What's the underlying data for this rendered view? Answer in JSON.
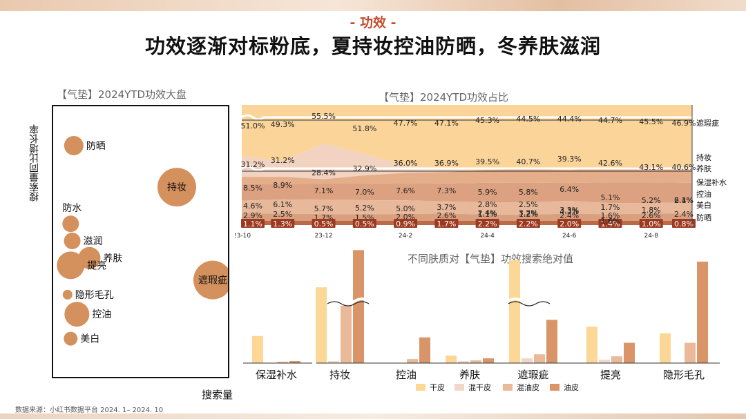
{
  "header": {
    "tag": "- 功效 -",
    "title": "功效逐渐对标粉底，夏持妆控油防晒，冬养肤滋润"
  },
  "source": "数据来源：小红书数据平台 2024. 1– 2024. 10",
  "colors": {
    "bubble": "#d4915e",
    "area_top": "#fbd49a",
    "area_mid": "#f2d3c1",
    "area_band": "#e4ae8b",
    "area_low": "#dca181",
    "area_base": "#ba6a47",
    "gan": "#fcd796",
    "hungan": "#f1d7ca",
    "hunyou": "#e9b99a",
    "you": "#d99568",
    "badge": "#9b3a20"
  },
  "chart_data": [
    {
      "type": "scatter",
      "title": "【气垫】2024YTD功效大盘",
      "xlabel": "搜索量",
      "ylabel": "搜索量同比增长率",
      "points": [
        {
          "label": "防晒",
          "x": 0.07,
          "y": 0.89,
          "size": 14
        },
        {
          "label": "持妆",
          "x": 0.73,
          "y": 0.72,
          "size": 28
        },
        {
          "label": "防水",
          "x": 0.05,
          "y": 0.57,
          "size": 12
        },
        {
          "label": "滋润",
          "x": 0.06,
          "y": 0.5,
          "size": 12
        },
        {
          "label": "养肤",
          "x": 0.17,
          "y": 0.43,
          "size": 16
        },
        {
          "label": "提亮",
          "x": 0.05,
          "y": 0.4,
          "size": 20
        },
        {
          "label": "遮瑕疵",
          "x": 0.96,
          "y": 0.34,
          "size": 28
        },
        {
          "label": "隐形毛孔",
          "x": 0.03,
          "y": 0.28,
          "size": 7
        },
        {
          "label": "控油",
          "x": 0.09,
          "y": 0.2,
          "size": 18
        },
        {
          "label": "美白",
          "x": 0.05,
          "y": 0.1,
          "size": 10
        }
      ]
    },
    {
      "type": "area",
      "stacked": true,
      "title": "【气垫】2024YTD功效占比",
      "x_ticks": [
        "23-10",
        "23-12",
        "24-2",
        "24-4",
        "24-6",
        "24-8"
      ],
      "series": [
        {
          "name": "遮瑕疵",
          "values": [
            51.0,
            49.3,
            55.5,
            51.8,
            47.7,
            47.1,
            45.3,
            44.5,
            44.4,
            44.7,
            45.5,
            46.9
          ]
        },
        {
          "name": "持妆",
          "values": [
            31.2,
            31.2,
            28.4,
            32.9,
            36.0,
            36.9,
            39.5,
            40.7,
            39.3,
            42.6,
            43.1,
            40.6
          ]
        },
        {
          "name": "养肤",
          "values": [
            null,
            null,
            null,
            null,
            null,
            null,
            null,
            null,
            null,
            null,
            null,
            null
          ]
        },
        {
          "name": "保湿补水",
          "values": [
            8.5,
            8.9,
            7.1,
            7.0,
            7.6,
            7.3,
            5.9,
            5.8,
            6.4,
            5.1,
            5.2,
            6.1
          ]
        },
        {
          "name": "控油",
          "values": [
            4.6,
            6.1,
            5.7,
            5.2,
            5.0,
            3.7,
            2.8,
            2.5,
            4.3,
            1.7,
            1.8,
            2.4
          ]
        },
        {
          "name": "美白",
          "values": [
            2.9,
            2.5,
            1.7,
            1.5,
            2.0,
            2.6,
            1.1,
            1.2,
            2.4,
            1.6,
            2.6,
            2.4
          ]
        },
        {
          "name": "防晒",
          "values": [
            1.1,
            1.3,
            0.5,
            0.5,
            0.9,
            1.7,
            2.2,
            2.2,
            2.0,
            1.4,
            1.0,
            0.8
          ]
        }
      ],
      "control_values": [
        2.4,
        3.2,
        3.3,
        1.6
      ]
    },
    {
      "type": "bar",
      "title": "不同肤质对【气垫】功效搜索绝对值",
      "categories": [
        "保湿补水",
        "持妆",
        "控油",
        "养肤",
        "遮瑕疵",
        "提亮",
        "隐形毛孔"
      ],
      "series": [
        {
          "name": "干皮",
          "values": [
            40,
            112,
            0,
            11,
            152,
            54,
            44
          ]
        },
        {
          "name": "混干皮",
          "values": [
            0,
            3,
            0,
            3,
            7,
            5,
            0
          ]
        },
        {
          "name": "混油皮",
          "values": [
            2,
            85,
            6,
            4,
            13,
            10,
            30
          ]
        },
        {
          "name": "油皮",
          "values": [
            3,
            167,
            38,
            7,
            64,
            30,
            150
          ]
        }
      ]
    }
  ]
}
